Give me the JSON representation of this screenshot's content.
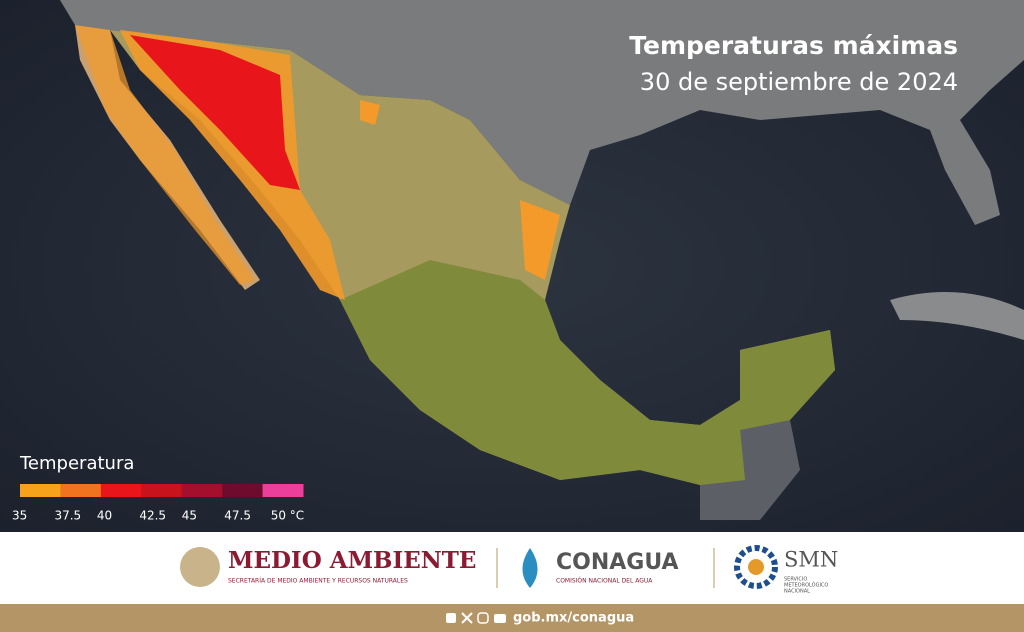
{
  "header": {
    "title": "Temperaturas máximas",
    "subtitle": "30 de septiembre de 2024"
  },
  "legend": {
    "title": "Temperatura",
    "colors": [
      "#f7a21b",
      "#f2731f",
      "#e8161b",
      "#c8121c",
      "#a30f2c",
      "#6f0b2d",
      "#ec3f9b"
    ],
    "ticks": [
      "35",
      "37.5",
      "40",
      "42.5",
      "45",
      "47.5",
      "50 °C"
    ]
  },
  "footer": {
    "semarnat": {
      "name": "MEDIO AMBIENTE",
      "subtitle": "SECRETARÍA DE MEDIO AMBIENTE Y RECURSOS NATURALES"
    },
    "conagua": {
      "name": "CONAGUA",
      "subtitle": "COMISIÓN NACIONAL DEL AGUA"
    },
    "smn": {
      "name": "SMN",
      "subtitle": [
        "SERVICIO",
        "METEOROLÓGICO",
        "NACIONAL"
      ]
    },
    "website": "gob.mx/conagua"
  }
}
